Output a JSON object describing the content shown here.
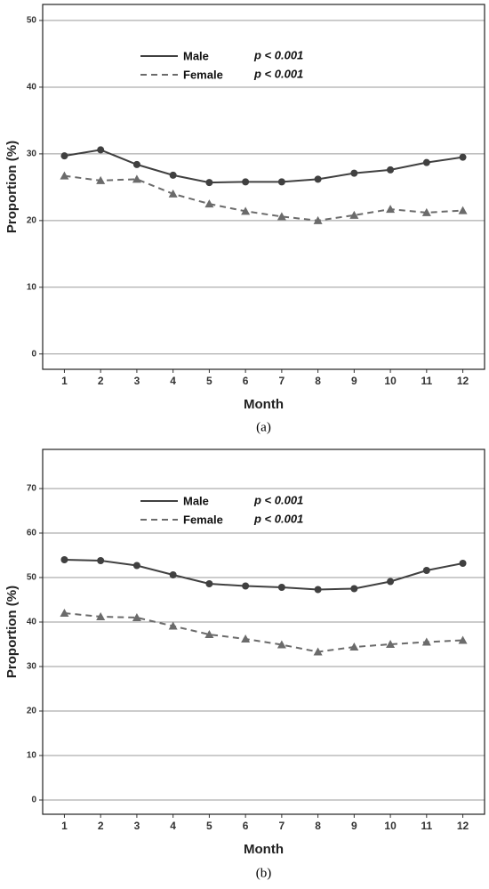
{
  "chart_data": [
    {
      "type": "line",
      "y_label": "Proportion (%)",
      "x_label": "Month",
      "caption": "(a)",
      "x": [
        1,
        2,
        3,
        4,
        5,
        6,
        7,
        8,
        9,
        10,
        11,
        12
      ],
      "xlim": [
        0.4,
        12.6
      ],
      "xticks": [
        1,
        2,
        3,
        4,
        5,
        6,
        7,
        8,
        9,
        10,
        11,
        12
      ],
      "ylim": [
        -2.3,
        52.4
      ],
      "yticks": [
        0,
        10,
        20,
        30,
        40,
        50
      ],
      "grid": true,
      "legend": "top-left",
      "series": [
        {
          "name": "Male",
          "annotation": "p < 0.001",
          "color": "#404040",
          "dash": false,
          "marker": "circle",
          "values": [
            29.7,
            30.6,
            28.4,
            26.8,
            25.7,
            25.8,
            25.8,
            26.2,
            27.1,
            27.6,
            28.7,
            29.5
          ]
        },
        {
          "name": "Female",
          "annotation": "p < 0.001",
          "color": "#6b6b6b",
          "dash": true,
          "marker": "triangle",
          "values": [
            26.7,
            26.0,
            26.2,
            24.0,
            22.5,
            21.4,
            20.6,
            20.0,
            20.8,
            21.7,
            21.2,
            21.5
          ]
        }
      ]
    },
    {
      "type": "line",
      "y_label": "Proportion (%)",
      "x_label": "Month",
      "caption": "(b)",
      "x": [
        1,
        2,
        3,
        4,
        5,
        6,
        7,
        8,
        9,
        10,
        11,
        12
      ],
      "xlim": [
        0.4,
        12.6
      ],
      "xticks": [
        1,
        2,
        3,
        4,
        5,
        6,
        7,
        8,
        9,
        10,
        11,
        12
      ],
      "ylim": [
        -3.2,
        78.8
      ],
      "yticks": [
        0,
        10,
        20,
        30,
        40,
        50,
        60,
        70
      ],
      "grid": true,
      "legend": "top-left",
      "series": [
        {
          "name": "Male",
          "annotation": "p < 0.001",
          "color": "#404040",
          "dash": false,
          "marker": "circle",
          "values": [
            54.0,
            53.8,
            52.7,
            50.6,
            48.6,
            48.1,
            47.8,
            47.3,
            47.5,
            49.1,
            51.6,
            53.2
          ]
        },
        {
          "name": "Female",
          "annotation": "p < 0.001",
          "color": "#6b6b6b",
          "dash": true,
          "marker": "triangle",
          "values": [
            42.0,
            41.2,
            41.0,
            39.1,
            37.2,
            36.2,
            34.9,
            33.3,
            34.4,
            35.0,
            35.5,
            35.9
          ]
        }
      ]
    }
  ]
}
